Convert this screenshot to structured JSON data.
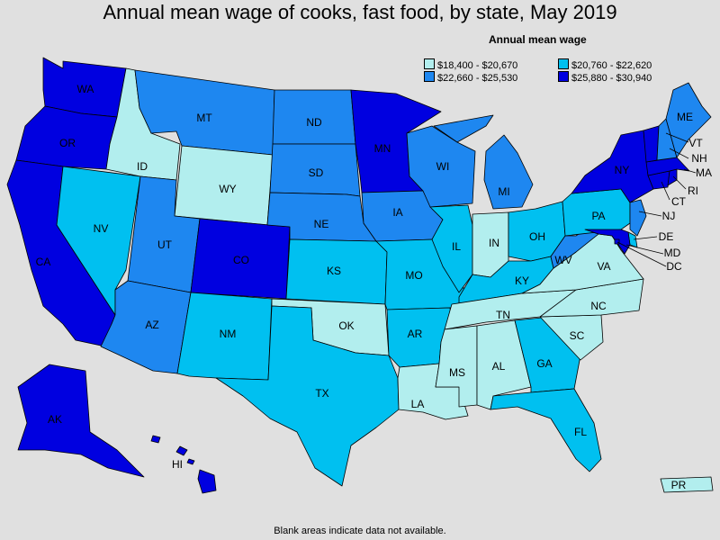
{
  "title": "Annual mean wage of cooks, fast food, by state, May 2019",
  "legend": {
    "title": "Annual mean wage",
    "classes": [
      {
        "range": "$18,400 - $20,670",
        "color": "#b2eeee"
      },
      {
        "range": "$20,760 - $22,620",
        "color": "#00c0f0"
      },
      {
        "range": "$22,660 - $25,530",
        "color": "#1e87f0"
      },
      {
        "range": "$25,880 - $30,940",
        "color": "#0000e0"
      }
    ]
  },
  "footnote": "Blank areas indicate data not available.",
  "states": [
    {
      "abbr": "WA",
      "class": 3
    },
    {
      "abbr": "OR",
      "class": 3
    },
    {
      "abbr": "CA",
      "class": 3
    },
    {
      "abbr": "NV",
      "class": 1
    },
    {
      "abbr": "ID",
      "class": 0
    },
    {
      "abbr": "MT",
      "class": 2
    },
    {
      "abbr": "WY",
      "class": 0
    },
    {
      "abbr": "UT",
      "class": 2
    },
    {
      "abbr": "AZ",
      "class": 2
    },
    {
      "abbr": "CO",
      "class": 3
    },
    {
      "abbr": "NM",
      "class": 1
    },
    {
      "abbr": "ND",
      "class": 2
    },
    {
      "abbr": "SD",
      "class": 2
    },
    {
      "abbr": "NE",
      "class": 2
    },
    {
      "abbr": "KS",
      "class": 1
    },
    {
      "abbr": "OK",
      "class": 0
    },
    {
      "abbr": "TX",
      "class": 1
    },
    {
      "abbr": "MN",
      "class": 3
    },
    {
      "abbr": "IA",
      "class": 2
    },
    {
      "abbr": "MO",
      "class": 1
    },
    {
      "abbr": "AR",
      "class": 1
    },
    {
      "abbr": "LA",
      "class": 0
    },
    {
      "abbr": "WI",
      "class": 2
    },
    {
      "abbr": "IL",
      "class": 1
    },
    {
      "abbr": "MI",
      "class": 2
    },
    {
      "abbr": "IN",
      "class": 0
    },
    {
      "abbr": "OH",
      "class": 1
    },
    {
      "abbr": "KY",
      "class": 1
    },
    {
      "abbr": "TN",
      "class": 0
    },
    {
      "abbr": "MS",
      "class": 0
    },
    {
      "abbr": "AL",
      "class": 0
    },
    {
      "abbr": "GA",
      "class": 1
    },
    {
      "abbr": "FL",
      "class": 1
    },
    {
      "abbr": "SC",
      "class": 0
    },
    {
      "abbr": "NC",
      "class": 0
    },
    {
      "abbr": "VA",
      "class": 0
    },
    {
      "abbr": "WV",
      "class": 2
    },
    {
      "abbr": "PA",
      "class": 1
    },
    {
      "abbr": "NY",
      "class": 3
    },
    {
      "abbr": "VT",
      "class": 3
    },
    {
      "abbr": "NH",
      "class": 2
    },
    {
      "abbr": "ME",
      "class": 2
    },
    {
      "abbr": "MA",
      "class": 3
    },
    {
      "abbr": "RI",
      "class": 3
    },
    {
      "abbr": "CT",
      "class": 3
    },
    {
      "abbr": "NJ",
      "class": 2
    },
    {
      "abbr": "DE",
      "class": 1
    },
    {
      "abbr": "MD",
      "class": 3
    },
    {
      "abbr": "DC",
      "class": 3
    },
    {
      "abbr": "AK",
      "class": 3
    },
    {
      "abbr": "HI",
      "class": 3
    },
    {
      "abbr": "PR",
      "class": 0
    }
  ]
}
